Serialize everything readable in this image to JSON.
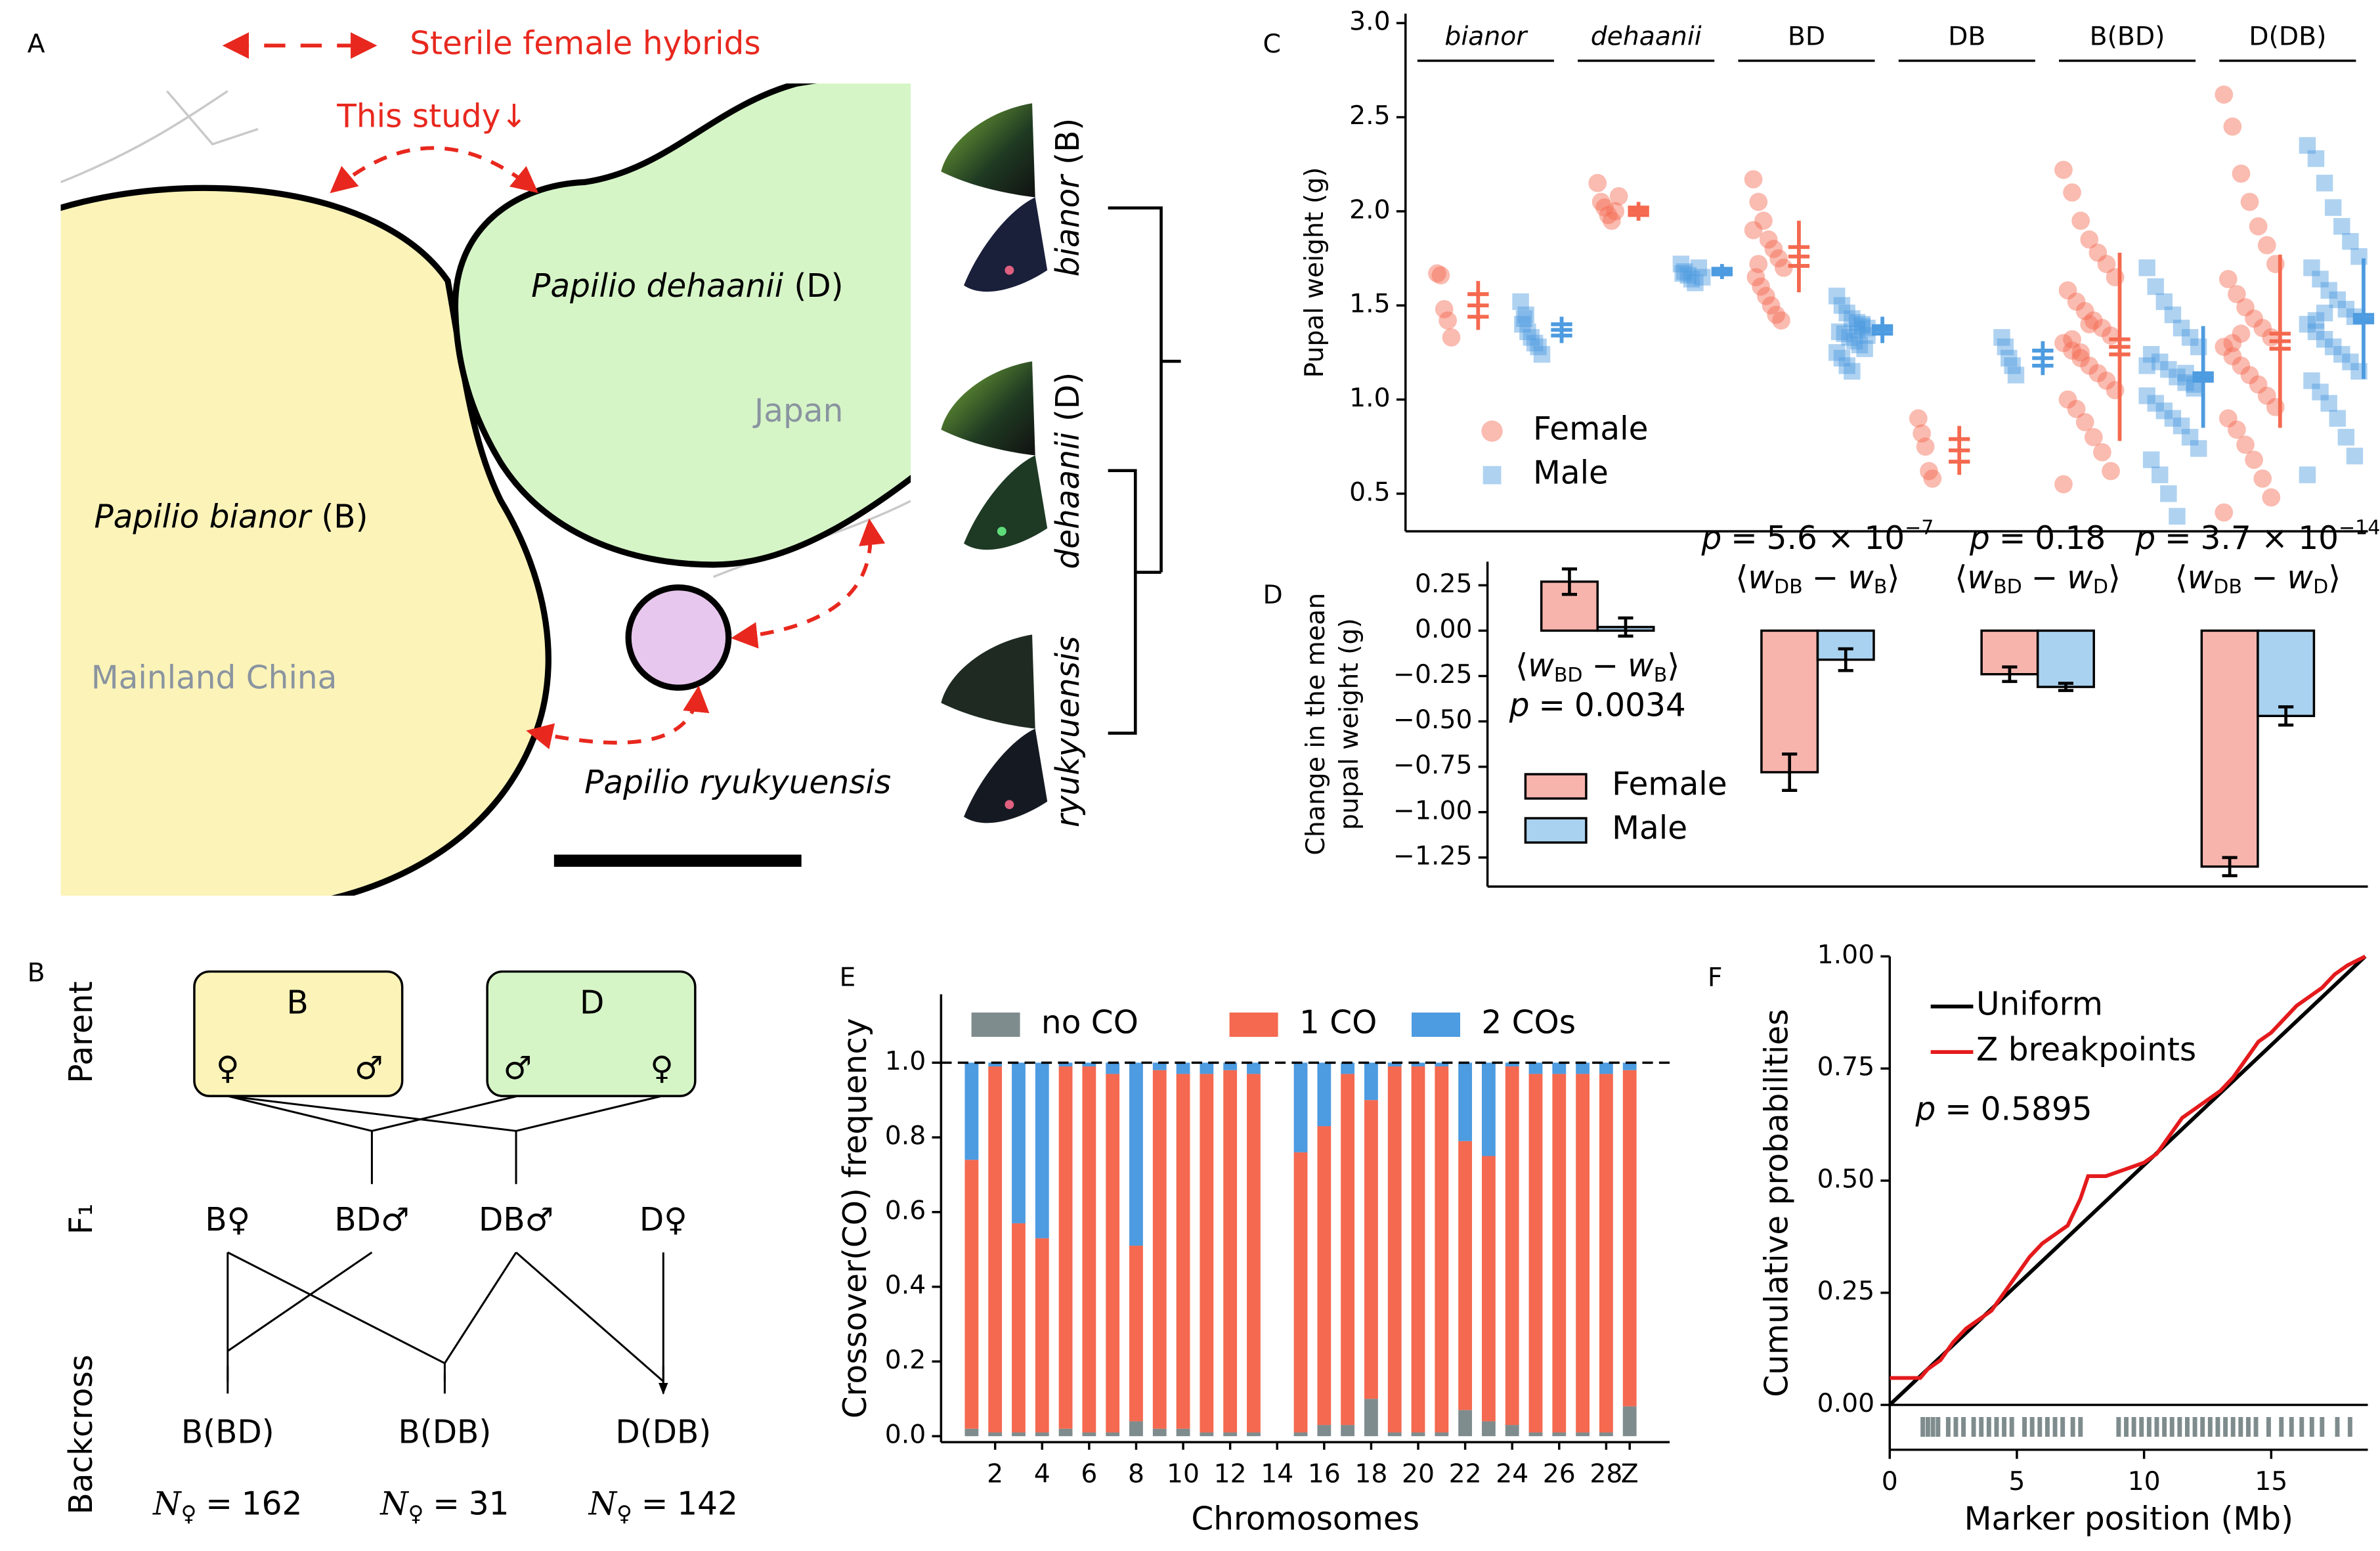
{
  "panels": [
    "A",
    "B",
    "C",
    "D",
    "E",
    "F"
  ],
  "map": {
    "legend": "Sterile female hybrids",
    "this_study": "This study↓",
    "regions": [
      {
        "species": "Papilio bianor",
        "code": "(B)"
      },
      {
        "species": "Papilio dehaanii",
        "code": "(D)"
      },
      {
        "species": "Papilio ryukyuensis"
      }
    ],
    "places": [
      "Mainland China",
      "Japan"
    ],
    "tree": [
      {
        "species": "bianor",
        "code": "(B)"
      },
      {
        "species": "dehaanii",
        "code": "(D)"
      },
      {
        "species": "ryukyuensis"
      }
    ]
  },
  "cross": {
    "rows": [
      "Parent",
      "F₁",
      "Backcross"
    ],
    "parents": [
      {
        "label": "B",
        "left": "♀",
        "right": "♂"
      },
      {
        "label": "D",
        "left": "♂",
        "right": "♀"
      }
    ],
    "f1": [
      "B♀",
      "BD♂",
      "DB♂",
      "D♀"
    ],
    "backcross": [
      {
        "label": "B(BD)",
        "n": 162
      },
      {
        "label": "B(DB)",
        "n": 31
      },
      {
        "label": "D(DB)",
        "n": 142
      }
    ],
    "n_symbol": "N",
    "n_sub": "♀",
    "equals": "="
  },
  "chart_data": [
    {
      "type": "strip",
      "ylabel": "Pupal weight (g)",
      "ylim": [
        0.3,
        3.05
      ],
      "yticks": [
        0.5,
        {
          "value": 1,
          "label": "1.0"
        },
        1.5,
        {
          "value": 2,
          "label": "2.0"
        },
        2.5,
        {
          "value": 3,
          "label": "3.0"
        }
      ],
      "groups": [
        {
          "name": "bianor",
          "italic": true
        },
        {
          "name": "dehaanii",
          "italic": true
        },
        {
          "name": "BD",
          "italic": false
        },
        {
          "name": "DB",
          "italic": false
        },
        {
          "name": "B(BD)",
          "italic": false
        },
        {
          "name": "D(DB)",
          "italic": false
        }
      ],
      "legend": "lower left",
      "series": [
        {
          "name": "Female",
          "color": "#f4694f",
          "marker": "circle",
          "groups": [
            {
              "values": [
                1.67,
                1.66,
                1.48,
                1.42,
                1.33
              ],
              "mean": 1.5,
              "sd": 0.13,
              "se": 0.06
            },
            {
              "values": [
                2.15,
                2.05,
                2.02,
                1.98,
                1.95,
                2.0,
                2.08
              ],
              "mean": 2.0,
              "sd": 0.05,
              "se": 0.02
            },
            {
              "values": [
                2.17,
                2.05,
                1.95,
                1.85,
                1.8,
                1.75,
                1.7,
                1.65,
                1.6,
                1.55,
                1.5,
                1.45,
                1.42,
                1.9,
                1.72
              ],
              "mean": 1.76,
              "sd": 0.19,
              "se": 0.05
            },
            {
              "values": [
                0.9,
                0.82,
                0.75,
                0.62,
                0.58
              ],
              "mean": 0.73,
              "sd": 0.13,
              "se": 0.06
            },
            {
              "values": [
                2.22,
                2.1,
                1.95,
                1.85,
                1.78,
                1.72,
                1.65,
                1.58,
                1.52,
                1.47,
                1.42,
                1.38,
                1.34,
                1.3,
                1.26,
                1.22,
                1.18,
                1.14,
                1.1,
                1.05,
                1.0,
                0.95,
                0.88,
                0.8,
                0.72,
                0.62,
                0.55,
                1.32,
                1.25,
                1.4
              ],
              "mean": 1.28,
              "sd": 0.5,
              "se": 0.04
            },
            {
              "values": [
                2.62,
                2.45,
                2.2,
                2.05,
                1.92,
                1.82,
                1.72,
                1.64,
                1.56,
                1.49,
                1.43,
                1.38,
                1.33,
                1.28,
                1.23,
                1.18,
                1.13,
                1.08,
                1.02,
                0.96,
                0.9,
                0.84,
                0.76,
                0.68,
                0.58,
                0.48,
                0.4,
                1.3,
                1.35
              ],
              "mean": 1.31,
              "sd": 0.46,
              "se": 0.04
            }
          ]
        },
        {
          "name": "Male",
          "color": "#4d9be0",
          "marker": "square",
          "groups": [
            {
              "values": [
                1.52,
                1.43,
                1.36,
                1.33,
                1.3,
                1.28,
                1.24,
                1.4,
                1.45
              ],
              "mean": 1.37,
              "sd": 0.07,
              "se": 0.03
            },
            {
              "values": [
                1.72,
                1.68,
                1.66,
                1.64,
                1.62,
                1.7,
                1.65,
                1.67
              ],
              "mean": 1.68,
              "sd": 0.04,
              "se": 0.015
            },
            {
              "values": [
                1.55,
                1.5,
                1.46,
                1.43,
                1.41,
                1.39,
                1.38,
                1.36,
                1.35,
                1.33,
                1.31,
                1.29,
                1.27,
                1.25,
                1.22,
                1.18,
                1.15,
                1.37,
                1.4,
                1.34
              ],
              "mean": 1.37,
              "sd": 0.07,
              "se": 0.02
            },
            {
              "values": [
                1.33,
                1.28,
                1.22,
                1.18,
                1.13
              ],
              "mean": 1.22,
              "sd": 0.09,
              "se": 0.04
            },
            {
              "values": [
                1.7,
                1.6,
                1.52,
                1.45,
                1.38,
                1.33,
                1.28,
                1.24,
                1.2,
                1.16,
                1.12,
                1.09,
                1.06,
                1.02,
                0.98,
                0.94,
                0.9,
                0.86,
                0.8,
                0.74,
                0.68,
                0.6,
                0.5,
                0.38,
                1.14,
                1.08,
                1.18
              ],
              "mean": 1.12,
              "sd": 0.27,
              "se": 0.02
            },
            {
              "values": [
                2.35,
                2.28,
                2.15,
                2.02,
                1.92,
                1.84,
                1.76,
                1.7,
                1.64,
                1.58,
                1.53,
                1.48,
                1.44,
                1.4,
                1.36,
                1.32,
                1.28,
                1.24,
                1.2,
                1.15,
                1.1,
                1.04,
                0.98,
                0.9,
                0.8,
                0.7,
                0.6,
                1.42,
                1.46
              ],
              "mean": 1.43,
              "sd": 0.32,
              "se": 0.02
            }
          ]
        }
      ]
    },
    {
      "type": "bar",
      "ylabel": [
        "Change in the mean",
        "pupal weight (g)"
      ],
      "ylim": [
        -1.41,
        0.38
      ],
      "yticks": [
        0.25,
        {
          "value": 0,
          "label": "0.00"
        },
        {
          "value": -0.25,
          "label": "−0.25"
        },
        {
          "value": -0.5,
          "label": "−0.50"
        },
        {
          "value": -0.75,
          "label": "−0.75"
        },
        {
          "value": -1,
          "label": "−1.00"
        },
        {
          "value": -1.25,
          "label": "−1.25"
        }
      ],
      "legend": "lower left",
      "series": [
        {
          "name": "Female",
          "color": "#f7b4ad",
          "values": [
            0.27,
            -0.78,
            -0.24,
            -1.3
          ],
          "errors": [
            0.07,
            0.1,
            0.04,
            0.05
          ]
        },
        {
          "name": "Male",
          "color": "#a9d2f0",
          "values": [
            0.02,
            -0.16,
            -0.31,
            -0.47
          ],
          "errors": [
            0.05,
            0.06,
            0.02,
            0.05
          ]
        }
      ],
      "groups": [
        {
          "label": {
            "open": "⟨",
            "w": "w",
            "sub1": "BD",
            "minus": "−",
            "sub2": "B",
            "close": "⟩"
          },
          "p": {
            "symbol": "p",
            "eq": "=",
            "value": "0.0034"
          }
        },
        {
          "label": {
            "open": "⟨",
            "w": "w",
            "sub1": "DB",
            "minus": "−",
            "sub2": "B",
            "close": "⟩"
          },
          "p": {
            "symbol": "p",
            "eq": "=",
            "base": "5.6 × 10",
            "exp": "−7"
          }
        },
        {
          "label": {
            "open": "⟨",
            "w": "w",
            "sub1": "BD",
            "minus": "−",
            "sub2": "D",
            "close": "⟩"
          },
          "p": {
            "symbol": "p",
            "eq": "=",
            "value": "0.18"
          }
        },
        {
          "label": {
            "open": "⟨",
            "w": "w",
            "sub1": "DB",
            "minus": "−",
            "sub2": "D",
            "close": "⟩"
          },
          "p": {
            "symbol": "p",
            "eq": "=",
            "base": "3.7 × 10",
            "exp": "−14"
          }
        }
      ]
    },
    {
      "type": "stacked-bar",
      "ylabel": "Crossover(CO) frequency",
      "xlabel": "Chromosomes",
      "ylim": [
        -0.016,
        1.183
      ],
      "yticks": [
        {
          "value": 0,
          "label": "0.0"
        },
        0.2,
        0.4,
        0.6,
        0.8,
        {
          "value": 1,
          "label": "1.0"
        }
      ],
      "hline": 1,
      "legend": "upper center",
      "categories": [
        null,
        "2",
        null,
        "4",
        null,
        "6",
        null,
        "8",
        null,
        "10",
        null,
        "12",
        null,
        "14",
        null,
        "16",
        null,
        "18",
        null,
        "20",
        null,
        "22",
        null,
        "24",
        null,
        "26",
        null,
        "28",
        "Z"
      ],
      "series": [
        {
          "name": "no CO",
          "color": "#7f8c8d",
          "values": [
            0.02,
            0.01,
            0.01,
            0.01,
            0.02,
            0.01,
            0.01,
            0.04,
            0.02,
            0.02,
            0.01,
            0.01,
            0.01,
            null,
            0.01,
            0.03,
            0.03,
            0.1,
            0.01,
            0.01,
            0.01,
            0.07,
            0.04,
            0.03,
            0.01,
            0.01,
            0.01,
            0.01,
            0.08
          ]
        },
        {
          "name": "1 CO",
          "color": "#f4694f",
          "values": [
            0.72,
            0.98,
            0.56,
            0.52,
            0.97,
            0.98,
            0.96,
            0.47,
            0.96,
            0.95,
            0.96,
            0.97,
            0.96,
            null,
            0.75,
            0.8,
            0.94,
            0.8,
            0.98,
            0.98,
            0.98,
            0.72,
            0.71,
            0.96,
            0.96,
            0.96,
            0.96,
            0.96,
            0.9
          ]
        },
        {
          "name": "2 COs",
          "color": "#4d9be0",
          "values": [
            0.26,
            0.01,
            0.43,
            0.47,
            0.01,
            0.01,
            0.03,
            0.49,
            0.02,
            0.03,
            0.03,
            0.02,
            0.03,
            null,
            0.24,
            0.17,
            0.03,
            0.1,
            0.01,
            0.01,
            0.01,
            0.21,
            0.25,
            0.01,
            0.03,
            0.03,
            0.03,
            0.03,
            0.02
          ]
        }
      ]
    },
    {
      "type": "line",
      "ylabel": "Cumulative probabilities",
      "xlabel": "Marker position (Mb)",
      "xlim": [
        0,
        18.8
      ],
      "ylim": [
        -0.1,
        1.0
      ],
      "xticks": [
        0,
        5,
        10,
        15
      ],
      "yticks": [
        {
          "value": 0,
          "label": "0.00"
        },
        0.25,
        {
          "value": 0.5,
          "label": "0.50"
        },
        0.75,
        {
          "value": 1,
          "label": "1.00"
        }
      ],
      "hline": 0,
      "legend": "upper left",
      "annotation": {
        "symbol": "p",
        "eq": "=",
        "value": "0.5895"
      },
      "series": [
        {
          "name": "Uniform",
          "color": "#000000",
          "x": [
            0,
            18.7
          ],
          "values": [
            0,
            1
          ]
        },
        {
          "name": "Z breakpoints",
          "color": "#e41a1c",
          "x": [
            0,
            1.2,
            1.5,
            2.0,
            2.5,
            3.0,
            3.5,
            4.0,
            4.5,
            5.0,
            5.5,
            6.0,
            6.5,
            7.0,
            7.5,
            7.8,
            8.5,
            9.0,
            9.5,
            10.0,
            10.5,
            11.0,
            11.5,
            12.0,
            12.5,
            13.0,
            13.5,
            14.0,
            14.5,
            15.0,
            15.5,
            16.0,
            16.5,
            17.0,
            17.5,
            18.0,
            18.7
          ],
          "values": [
            0.06,
            0.06,
            0.08,
            0.1,
            0.14,
            0.17,
            0.19,
            0.21,
            0.25,
            0.29,
            0.33,
            0.36,
            0.38,
            0.4,
            0.46,
            0.51,
            0.51,
            0.52,
            0.53,
            0.54,
            0.56,
            0.6,
            0.64,
            0.66,
            0.68,
            0.7,
            0.73,
            0.77,
            0.81,
            0.83,
            0.86,
            0.89,
            0.91,
            0.93,
            0.96,
            0.98,
            1.0
          ]
        }
      ],
      "rug": {
        "color": "#7f8c8d",
        "x": [
          1.3,
          1.5,
          1.7,
          1.9,
          2.3,
          2.6,
          2.9,
          3.3,
          3.6,
          3.9,
          4.2,
          4.5,
          4.8,
          5.3,
          5.6,
          5.9,
          6.2,
          6.5,
          6.8,
          7.2,
          7.5,
          9.0,
          9.3,
          9.6,
          9.9,
          10.2,
          10.5,
          10.8,
          11.1,
          11.4,
          11.7,
          12.0,
          12.3,
          12.6,
          12.9,
          13.2,
          13.5,
          13.8,
          14.1,
          14.4,
          14.9,
          15.4,
          15.8,
          16.2,
          16.6,
          17.0,
          17.6,
          18.1
        ]
      }
    }
  ]
}
